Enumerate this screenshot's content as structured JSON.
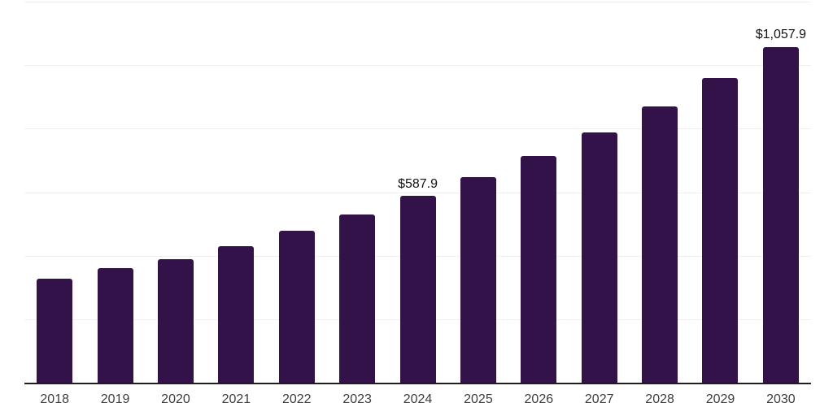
{
  "page": {
    "background_color": "#FFFFFF"
  },
  "chart_data": {
    "type": "bar",
    "title": "",
    "xlabel": "",
    "ylabel": "",
    "categories": [
      "2018",
      "2019",
      "2020",
      "2021",
      "2022",
      "2023",
      "2024",
      "2025",
      "2026",
      "2027",
      "2028",
      "2029",
      "2030"
    ],
    "values": [
      328,
      360,
      388,
      430,
      479,
      529,
      587.9,
      648.4,
      715.1,
      788.7,
      869.9,
      959.4,
      1057.9
    ],
    "data_labels": [
      "",
      "",
      "",
      "",
      "",
      "",
      "$587.9",
      "",
      "",
      "",
      "",
      "",
      "$1,057.9"
    ],
    "ylim": [
      0,
      1200
    ],
    "gridline_values": [
      0,
      200,
      400,
      600,
      800,
      1000,
      1200
    ],
    "grid": "horizontal-only",
    "legend": "none",
    "y_tick_labels_visible": false,
    "colors": {
      "bar": "#321249",
      "gridline": "#EFEFEF",
      "axis_line": "#1F1F1F",
      "tick_label": "#3D3D3D",
      "data_label": "#111111",
      "background": "#FFFFFF"
    }
  }
}
